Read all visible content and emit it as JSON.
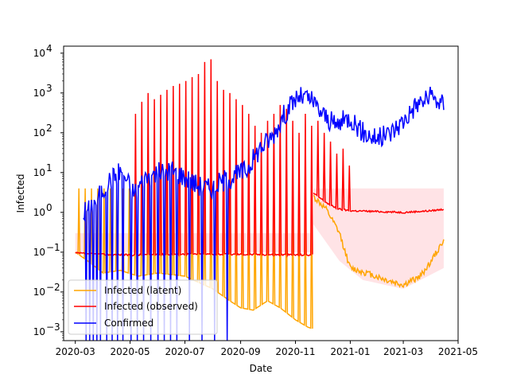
{
  "chart_data": {
    "type": "line",
    "title": "",
    "xlabel": "Date",
    "ylabel": "Infected",
    "yscale": "log",
    "ylim": [
      0.0006,
      15000
    ],
    "xlim": [
      "2020-02-17",
      "2021-05-01"
    ],
    "grid": false,
    "legend_position": "lower-left",
    "x_ticks": [
      "2020-03",
      "2020-05",
      "2020-07",
      "2020-09",
      "2020-11",
      "2021-01",
      "2021-03",
      "2021-05"
    ],
    "y_ticks": [
      {
        "value": 0.001,
        "base": "10",
        "exp": "−3"
      },
      {
        "value": 0.01,
        "base": "10",
        "exp": "−2"
      },
      {
        "value": 0.1,
        "base": "10",
        "exp": "−1"
      },
      {
        "value": 1,
        "base": "10",
        "exp": "0"
      },
      {
        "value": 10,
        "base": "10",
        "exp": "1"
      },
      {
        "value": 100,
        "base": "10",
        "exp": "2"
      },
      {
        "value": 1000,
        "base": "10",
        "exp": "3"
      },
      {
        "value": 10000,
        "base": "10",
        "exp": "4"
      }
    ],
    "series": [
      {
        "name": "Infected (latent)",
        "color": "#ffa500",
        "segments": [
          {
            "start": "2020-03-01",
            "end": "2020-11-20",
            "weekly_spike": 4,
            "base": [
              [
                "2020-03-01",
                0.1
              ],
              [
                "2020-03-15",
                0.06
              ],
              [
                "2020-04-01",
                0.03
              ],
              [
                "2020-04-20",
                0.035
              ],
              [
                "2020-05-10",
                0.025
              ],
              [
                "2020-06-01",
                0.03
              ],
              [
                "2020-07-01",
                0.025
              ],
              [
                "2020-08-01",
                0.012
              ],
              [
                "2020-08-20",
                0.006
              ],
              [
                "2020-09-01",
                0.004
              ],
              [
                "2020-09-15",
                0.0035
              ],
              [
                "2020-10-01",
                0.006
              ],
              [
                "2020-10-15",
                0.004
              ],
              [
                "2020-11-01",
                0.002
              ],
              [
                "2020-11-15",
                0.0013
              ],
              [
                "2020-11-20",
                0.0012
              ]
            ]
          },
          {
            "start": "2020-11-21",
            "end": "2021-04-15",
            "base": [
              [
                "2020-11-21",
                2.5
              ],
              [
                "2020-12-05",
                1.2
              ],
              [
                "2020-12-20",
                0.3
              ],
              [
                "2021-01-01",
                0.04
              ],
              [
                "2021-01-20",
                0.03
              ],
              [
                "2021-02-10",
                0.02
              ],
              [
                "2021-03-01",
                0.015
              ],
              [
                "2021-03-20",
                0.025
              ],
              [
                "2021-04-01",
                0.06
              ],
              [
                "2021-04-15",
                0.2
              ]
            ]
          }
        ]
      },
      {
        "name": "Infected (observed)",
        "color": "#ff0000",
        "segments": [
          {
            "start": "2020-03-01",
            "end": "2020-11-20",
            "base": [
              [
                "2020-03-01",
                0.095
              ],
              [
                "2020-04-01",
                0.088
              ],
              [
                "2020-05-01",
                0.085
              ],
              [
                "2020-07-01",
                0.09
              ],
              [
                "2020-09-01",
                0.088
              ],
              [
                "2020-11-20",
                0.085
              ]
            ],
            "spikes": [
              [
                "2020-05-07",
                300
              ],
              [
                "2020-05-14",
                600
              ],
              [
                "2020-05-21",
                1000
              ],
              [
                "2020-05-28",
                700
              ],
              [
                "2020-06-04",
                900
              ],
              [
                "2020-06-11",
                1200
              ],
              [
                "2020-06-18",
                1500
              ],
              [
                "2020-06-25",
                1700
              ],
              [
                "2020-07-02",
                2000
              ],
              [
                "2020-07-09",
                2500
              ],
              [
                "2020-07-16",
                3000
              ],
              [
                "2020-07-23",
                6000
              ],
              [
                "2020-07-30",
                7000
              ],
              [
                "2020-08-06",
                2000
              ],
              [
                "2020-08-13",
                1200
              ],
              [
                "2020-08-20",
                1000
              ],
              [
                "2020-08-27",
                700
              ],
              [
                "2020-09-03",
                500
              ],
              [
                "2020-09-10",
                300
              ],
              [
                "2020-09-17",
                150
              ],
              [
                "2020-09-24",
                100
              ],
              [
                "2020-10-01",
                200
              ],
              [
                "2020-10-08",
                300
              ],
              [
                "2020-10-15",
                500
              ],
              [
                "2020-10-22",
                400
              ],
              [
                "2020-10-29",
                200
              ],
              [
                "2020-11-05",
                100
              ],
              [
                "2020-11-12",
                300
              ],
              [
                "2020-11-19",
                150
              ]
            ]
          },
          {
            "start": "2020-11-21",
            "end": "2021-04-15",
            "base": [
              [
                "2020-11-21",
                3
              ],
              [
                "2020-12-10",
                1.5
              ],
              [
                "2020-12-20",
                1.2
              ],
              [
                "2021-01-01",
                1.1
              ],
              [
                "2021-02-01",
                1.05
              ],
              [
                "2021-03-01",
                1.0
              ],
              [
                "2021-04-01",
                1.1
              ],
              [
                "2021-04-15",
                1.2
              ]
            ],
            "spikes": [
              [
                "2020-11-26",
                200
              ],
              [
                "2020-12-03",
                100
              ],
              [
                "2020-12-10",
                60
              ],
              [
                "2020-12-17",
                30
              ],
              [
                "2020-12-24",
                40
              ],
              [
                "2020-12-31",
                15
              ]
            ]
          }
        ]
      },
      {
        "name": "Confirmed",
        "color": "#0000ff",
        "anchors": [
          [
            "2020-03-10",
            1
          ],
          [
            "2020-03-24",
            2
          ],
          [
            "2020-04-07",
            6
          ],
          [
            "2020-04-21",
            12
          ],
          [
            "2020-05-05",
            3
          ],
          [
            "2020-05-19",
            8
          ],
          [
            "2020-06-02",
            10
          ],
          [
            "2020-06-16",
            12
          ],
          [
            "2020-06-30",
            8
          ],
          [
            "2020-07-14",
            5
          ],
          [
            "2020-07-28",
            4
          ],
          [
            "2020-08-11",
            6
          ],
          [
            "2020-08-25",
            8
          ],
          [
            "2020-09-08",
            12
          ],
          [
            "2020-09-22",
            40
          ],
          [
            "2020-10-06",
            80
          ],
          [
            "2020-10-20",
            300
          ],
          [
            "2020-11-03",
            800
          ],
          [
            "2020-11-17",
            700
          ],
          [
            "2020-12-01",
            300
          ],
          [
            "2020-12-15",
            150
          ],
          [
            "2021-01-01",
            250
          ],
          [
            "2021-01-15",
            100
          ],
          [
            "2021-02-01",
            70
          ],
          [
            "2021-02-15",
            100
          ],
          [
            "2021-03-01",
            200
          ],
          [
            "2021-03-15",
            500
          ],
          [
            "2021-04-01",
            800
          ],
          [
            "2021-04-15",
            500
          ]
        ],
        "dropouts": [
          "2020-03-13",
          "2020-03-17",
          "2020-03-21",
          "2020-03-25",
          "2020-03-29",
          "2020-04-05",
          "2020-04-11",
          "2020-04-17",
          "2020-04-23",
          "2020-05-02",
          "2020-05-09",
          "2020-05-16",
          "2020-05-24",
          "2020-06-01",
          "2020-06-08",
          "2020-06-15",
          "2020-06-22",
          "2020-07-06",
          "2020-07-20",
          "2020-08-03",
          "2020-08-17"
        ]
      }
    ],
    "band": {
      "name": "uncertainty",
      "color": "#ffc0c8",
      "segments": [
        {
          "start": "2020-03-01",
          "end": "2020-11-20",
          "upper": [
            [
              "2020-03-01",
              0.3
            ],
            [
              "2020-11-20",
              0.3
            ]
          ],
          "lower": [
            [
              "2020-03-01",
              0.1
            ],
            [
              "2020-11-20",
              0.1
            ]
          ]
        },
        {
          "start": "2020-11-21",
          "end": "2021-04-15",
          "upper": [
            [
              "2020-11-21",
              4
            ],
            [
              "2021-04-15",
              4
            ]
          ],
          "lower": [
            [
              "2020-11-21",
              0.5
            ],
            [
              "2020-12-20",
              0.06
            ],
            [
              "2021-01-15",
              0.02
            ],
            [
              "2021-03-01",
              0.012
            ],
            [
              "2021-04-15",
              0.04
            ]
          ]
        }
      ]
    }
  }
}
